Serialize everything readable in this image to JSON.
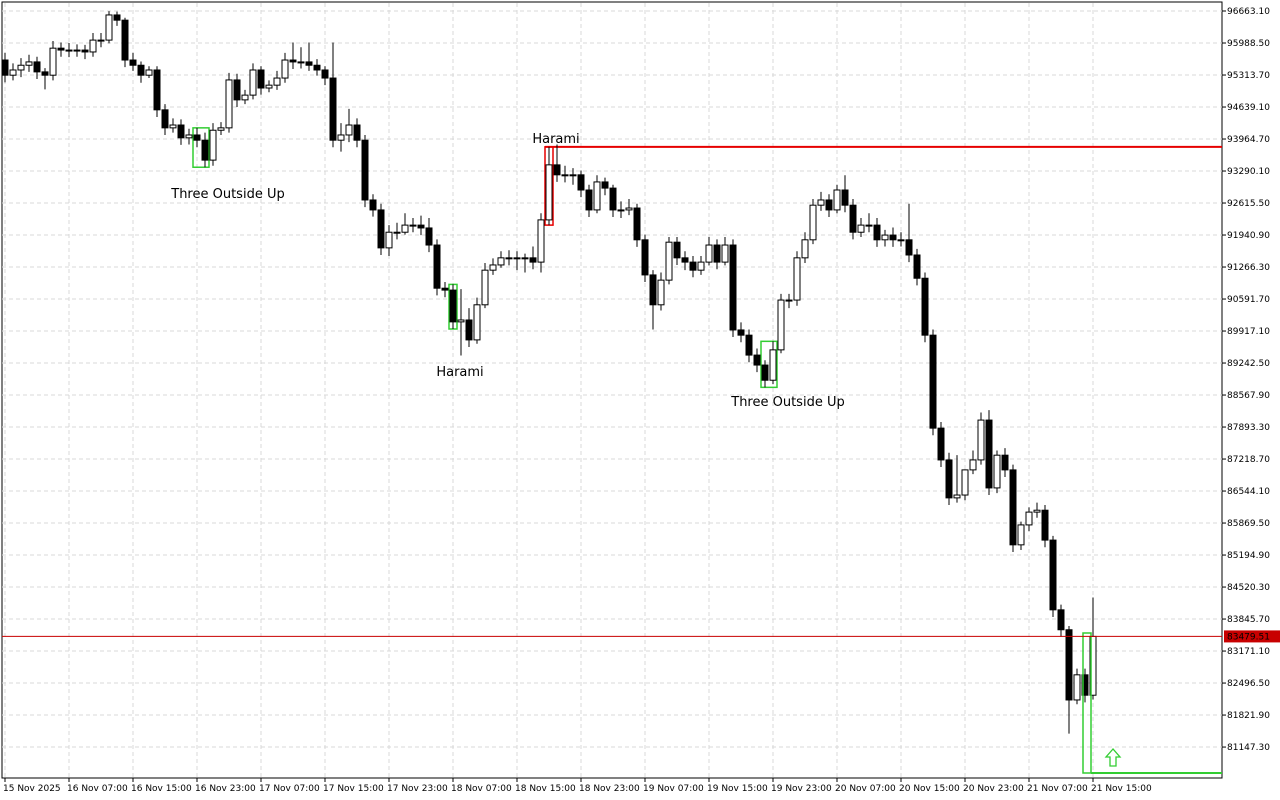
{
  "chart_data": {
    "type": "candlestick",
    "ylim": [
      80495,
      96832
    ],
    "yticks": [
      {
        "value": 96663.1,
        "label": "96663.10"
      },
      {
        "value": 95988.5,
        "label": "95988.50"
      },
      {
        "value": 95313.7,
        "label": "95313.70"
      },
      {
        "value": 94639.1,
        "label": "94639.10"
      },
      {
        "value": 93964.7,
        "label": "93964.70"
      },
      {
        "value": 93290.1,
        "label": "93290.10"
      },
      {
        "value": 92615.5,
        "label": "92615.50"
      },
      {
        "value": 91940.9,
        "label": "91940.90"
      },
      {
        "value": 91266.3,
        "label": "91266.30"
      },
      {
        "value": 90591.7,
        "label": "90591.70"
      },
      {
        "value": 89917.1,
        "label": "89917.10"
      },
      {
        "value": 89242.5,
        "label": "89242.50"
      },
      {
        "value": 88567.9,
        "label": "88567.90"
      },
      {
        "value": 87893.3,
        "label": "87893.30"
      },
      {
        "value": 87218.7,
        "label": "87218.70"
      },
      {
        "value": 86544.1,
        "label": "86544.10"
      },
      {
        "value": 85869.5,
        "label": "85869.50"
      },
      {
        "value": 85194.9,
        "label": "85194.90"
      },
      {
        "value": 84520.3,
        "label": "84520.30"
      },
      {
        "value": 83845.7,
        "label": "83845.70"
      },
      {
        "value": 83171.1,
        "label": "83171.10"
      },
      {
        "value": 82496.5,
        "label": "82496.50"
      },
      {
        "value": 81821.9,
        "label": "81821.90"
      },
      {
        "value": 81147.3,
        "label": "81147.30"
      }
    ],
    "grid": true,
    "current_price": 83479.51,
    "current_price_color": "#c80000",
    "bull_color": "#ffffff",
    "bear_color": "#000000",
    "categories": [
      "15 Nov 2025",
      null,
      null,
      null,
      null,
      null,
      null,
      null,
      "16 Nov 07:00",
      null,
      null,
      null,
      null,
      null,
      null,
      null,
      "16 Nov 15:00",
      null,
      null,
      null,
      null,
      null,
      null,
      null,
      "16 Nov 23:00",
      null,
      null,
      null,
      null,
      null,
      null,
      null,
      "17 Nov 07:00",
      null,
      null,
      null,
      null,
      null,
      null,
      null,
      "17 Nov 15:00",
      null,
      null,
      null,
      null,
      null,
      null,
      null,
      "17 Nov 23:00",
      null,
      null,
      null,
      null,
      null,
      null,
      null,
      "18 Nov 07:00",
      null,
      null,
      null,
      null,
      null,
      null,
      null,
      "18 Nov 15:00",
      null,
      null,
      null,
      null,
      null,
      null,
      null,
      "18 Nov 23:00",
      null,
      null,
      null,
      null,
      null,
      null,
      null,
      "19 Nov 07:00",
      null,
      null,
      null,
      null,
      null,
      null,
      null,
      "19 Nov 15:00",
      null,
      null,
      null,
      null,
      null,
      null,
      null,
      "19 Nov 23:00",
      null,
      null,
      null,
      null,
      null,
      null,
      null,
      "20 Nov 07:00",
      null,
      null,
      null,
      null,
      null,
      null,
      null,
      "20 Nov 15:00",
      null,
      null,
      null,
      null,
      null,
      null,
      null,
      "20 Nov 23:00",
      null,
      null,
      null,
      null,
      null,
      null,
      null,
      "21 Nov 07:00",
      null,
      null,
      null,
      null,
      null,
      null,
      null,
      "21 Nov 15:00"
    ],
    "ohlc": [
      [
        95630,
        95780,
        95160,
        95310
      ],
      [
        95310,
        95560,
        95200,
        95420
      ],
      [
        95420,
        95670,
        95270,
        95520
      ],
      [
        95520,
        95740,
        95380,
        95590
      ],
      [
        95590,
        95700,
        95230,
        95380
      ],
      [
        95380,
        95460,
        95010,
        95310
      ],
      [
        95310,
        96030,
        95200,
        95880
      ],
      [
        95880,
        96000,
        95700,
        95840
      ],
      [
        95840,
        95990,
        95690,
        95840
      ],
      [
        95840,
        95960,
        95700,
        95840
      ],
      [
        95840,
        95950,
        95650,
        95800
      ],
      [
        95800,
        96200,
        95700,
        96050
      ],
      [
        96050,
        96200,
        95900,
        96050
      ],
      [
        96050,
        96660,
        95980,
        96580
      ],
      [
        96580,
        96650,
        96350,
        96470
      ],
      [
        96470,
        96520,
        95480,
        95630
      ],
      [
        95630,
        95780,
        95400,
        95520
      ],
      [
        95520,
        95600,
        95150,
        95310
      ],
      [
        95310,
        95500,
        95250,
        95420
      ],
      [
        95420,
        95500,
        94430,
        94580
      ],
      [
        94580,
        94700,
        94050,
        94200
      ],
      [
        94200,
        94400,
        94100,
        94260
      ],
      [
        94260,
        94380,
        93840,
        93990
      ],
      [
        93990,
        94180,
        93850,
        94050
      ],
      [
        94050,
        94200,
        93790,
        93940
      ],
      [
        93940,
        94100,
        93370,
        93520
      ],
      [
        93520,
        94300,
        93400,
        94150
      ],
      [
        94150,
        94320,
        94050,
        94200
      ],
      [
        94200,
        95360,
        94100,
        95210
      ],
      [
        95210,
        95340,
        94640,
        94790
      ],
      [
        94790,
        95000,
        94700,
        94890
      ],
      [
        94890,
        95560,
        94800,
        95420
      ],
      [
        95420,
        95500,
        94900,
        95040
      ],
      [
        95040,
        95200,
        94950,
        95100
      ],
      [
        95100,
        95400,
        95000,
        95250
      ],
      [
        95250,
        95780,
        95150,
        95630
      ],
      [
        95630,
        96000,
        95440,
        95590
      ],
      [
        95590,
        95900,
        95450,
        95590
      ],
      [
        95590,
        96000,
        95400,
        95520
      ],
      [
        95520,
        95650,
        95300,
        95420
      ],
      [
        95420,
        95500,
        95100,
        95250
      ],
      [
        95250,
        96000,
        93790,
        93940
      ],
      [
        93940,
        94300,
        93700,
        94050
      ],
      [
        94050,
        94600,
        93900,
        94260
      ],
      [
        94260,
        94400,
        93790,
        93940
      ],
      [
        93940,
        94050,
        92530,
        92680
      ],
      [
        92680,
        92800,
        92330,
        92470
      ],
      [
        92470,
        92600,
        91520,
        91670
      ],
      [
        91670,
        92150,
        91500,
        92000
      ],
      [
        92000,
        92200,
        91850,
        92000
      ],
      [
        92000,
        92400,
        91950,
        92150
      ],
      [
        92150,
        92300,
        92000,
        92150
      ],
      [
        92150,
        92350,
        91940,
        92090
      ],
      [
        92090,
        92300,
        91580,
        91730
      ],
      [
        91730,
        91850,
        90670,
        90820
      ],
      [
        90820,
        90950,
        90630,
        90780
      ],
      [
        90780,
        90900,
        89960,
        90110
      ],
      [
        90110,
        90800,
        89400,
        90150
      ],
      [
        90150,
        90400,
        89580,
        89730
      ],
      [
        89730,
        90620,
        89650,
        90470
      ],
      [
        90470,
        91350,
        90400,
        91200
      ],
      [
        91200,
        91450,
        91100,
        91310
      ],
      [
        91310,
        91600,
        91250,
        91460
      ],
      [
        91460,
        91620,
        91300,
        91460
      ],
      [
        91460,
        91600,
        91200,
        91460
      ],
      [
        91460,
        91550,
        91150,
        91460
      ],
      [
        91460,
        91700,
        91220,
        91370
      ],
      [
        91370,
        92400,
        91150,
        92260
      ],
      [
        92260,
        93800,
        92150,
        93420
      ],
      [
        93420,
        93850,
        93060,
        93210
      ],
      [
        93210,
        93400,
        93050,
        93210
      ],
      [
        93210,
        93350,
        93000,
        93210
      ],
      [
        93210,
        93300,
        92740,
        92890
      ],
      [
        92890,
        93000,
        92320,
        92470
      ],
      [
        92470,
        93200,
        92400,
        93060
      ],
      [
        93060,
        93150,
        92780,
        92930
      ],
      [
        92930,
        93000,
        92320,
        92470
      ],
      [
        92470,
        92650,
        92300,
        92470
      ],
      [
        92470,
        92700,
        92360,
        92510
      ],
      [
        92510,
        92600,
        91690,
        91840
      ],
      [
        91840,
        91950,
        90950,
        91100
      ],
      [
        91100,
        91200,
        89950,
        90470
      ],
      [
        90470,
        91150,
        90350,
        90990
      ],
      [
        90990,
        91900,
        90900,
        91790
      ],
      [
        91790,
        91900,
        91310,
        91460
      ],
      [
        91460,
        91600,
        91200,
        91370
      ],
      [
        91370,
        91500,
        91050,
        91200
      ],
      [
        91200,
        91500,
        91100,
        91370
      ],
      [
        91370,
        91900,
        91300,
        91730
      ],
      [
        91730,
        91850,
        91220,
        91370
      ],
      [
        91370,
        91900,
        91300,
        91730
      ],
      [
        91730,
        91850,
        89790,
        89940
      ],
      [
        89940,
        90100,
        89680,
        89830
      ],
      [
        89830,
        89950,
        89260,
        89410
      ],
      [
        89410,
        89550,
        89050,
        89200
      ],
      [
        89200,
        89300,
        88730,
        88880
      ],
      [
        88880,
        89700,
        88800,
        89520
      ],
      [
        89520,
        90700,
        89450,
        90570
      ],
      [
        90570,
        90700,
        90400,
        90570
      ],
      [
        90570,
        91600,
        90450,
        91460
      ],
      [
        91460,
        92000,
        91350,
        91840
      ],
      [
        91840,
        92700,
        91750,
        92570
      ],
      [
        92570,
        92850,
        92450,
        92680
      ],
      [
        92680,
        92800,
        92320,
        92470
      ],
      [
        92470,
        93000,
        92400,
        92890
      ],
      [
        92890,
        93200,
        92420,
        92570
      ],
      [
        92570,
        92700,
        91850,
        92000
      ],
      [
        92000,
        92300,
        91900,
        92150
      ],
      [
        92150,
        92400,
        92000,
        92150
      ],
      [
        92150,
        92300,
        91690,
        91840
      ],
      [
        91840,
        92050,
        91700,
        91940
      ],
      [
        91940,
        92100,
        91690,
        91840
      ],
      [
        91840,
        92000,
        91700,
        91840
      ],
      [
        91840,
        92600,
        91370,
        91520
      ],
      [
        91520,
        91650,
        90880,
        91030
      ],
      [
        91030,
        91150,
        89680,
        89830
      ],
      [
        89830,
        89950,
        87720,
        87870
      ],
      [
        87870,
        88000,
        87050,
        87200
      ],
      [
        87200,
        87350,
        86250,
        86400
      ],
      [
        86400,
        87300,
        86300,
        86460
      ],
      [
        86460,
        87000,
        86350,
        86990
      ],
      [
        86990,
        87400,
        86900,
        87200
      ],
      [
        87200,
        88200,
        87100,
        88040
      ],
      [
        88040,
        88250,
        86460,
        86610
      ],
      [
        86610,
        87400,
        86500,
        87300
      ],
      [
        87300,
        87450,
        86840,
        86990
      ],
      [
        86990,
        87100,
        85260,
        85410
      ],
      [
        85410,
        85900,
        85300,
        85830
      ],
      [
        85830,
        86200,
        85700,
        86100
      ],
      [
        86100,
        86300,
        85980,
        86140
      ],
      [
        86140,
        86250,
        85360,
        85510
      ],
      [
        85510,
        85600,
        83890,
        84040
      ],
      [
        84040,
        84150,
        83470,
        83620
      ],
      [
        83620,
        83700,
        81430,
        82140
      ],
      [
        82140,
        82800,
        82050,
        82670
      ],
      [
        82670,
        82800,
        82090,
        82240
      ],
      [
        82240,
        84300,
        82150,
        83479.51
      ]
    ],
    "patterns": [
      {
        "label": "Three Outside Up",
        "color": "#32cd32"
      },
      {
        "label": "Harami",
        "color": "#32cd32"
      },
      {
        "label": "Harami",
        "color": "#e60000"
      },
      {
        "label": "Three Outside Up",
        "color": "#32cd32"
      }
    ]
  }
}
